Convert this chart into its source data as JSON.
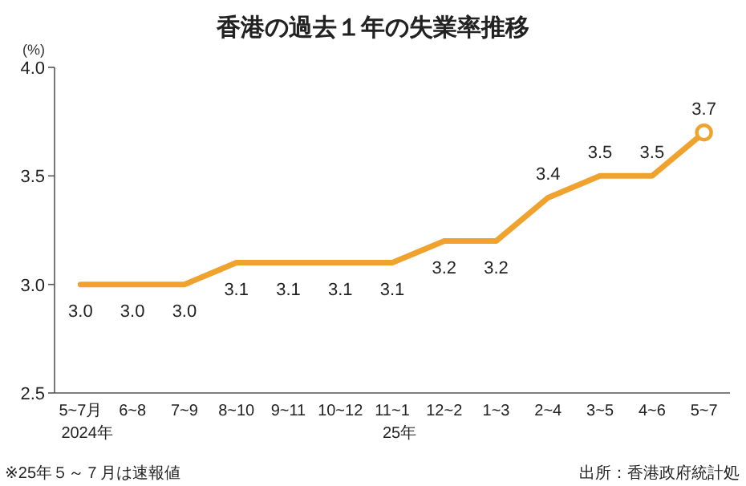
{
  "chart_data": {
    "type": "line",
    "title": "香港の過去１年の失業率推移",
    "ylabel": "(%)",
    "categories": [
      "5~7月",
      "6~8",
      "7~9",
      "8~10",
      "9~11",
      "10~12",
      "11~1",
      "12~2",
      "1~3",
      "2~4",
      "3~5",
      "4~6",
      "5~7"
    ],
    "series": [
      {
        "color": "#f0a22e",
        "values": [
          3.0,
          3.0,
          3.0,
          3.1,
          3.1,
          3.1,
          3.1,
          3.2,
          3.2,
          3.4,
          3.5,
          3.5,
          3.7
        ],
        "value_labels": [
          "3.0",
          "3.0",
          "3.0",
          "3.1",
          "3.1",
          "3.1",
          "3.1",
          "3.2",
          "3.2",
          "3.4",
          "3.5",
          "3.5",
          "3.7"
        ]
      },
      {
        "type": "scatter",
        "marker": "circle",
        "color": "#f0a22e",
        "values": [
          null,
          null,
          null,
          null,
          null,
          null,
          null,
          null,
          null,
          null,
          null,
          null,
          3.7
        ]
      }
    ],
    "ylim": [
      2.5,
      4.0
    ],
    "yticks": [
      2.5,
      {
        "value": 3,
        "label": "3.0"
      },
      3.5,
      {
        "value": 4,
        "label": "4.0"
      }
    ],
    "grid": false,
    "annotations": [
      "2024年",
      "25年",
      "※25年５～７月は速報値",
      "出所：香港政府統計処"
    ]
  }
}
